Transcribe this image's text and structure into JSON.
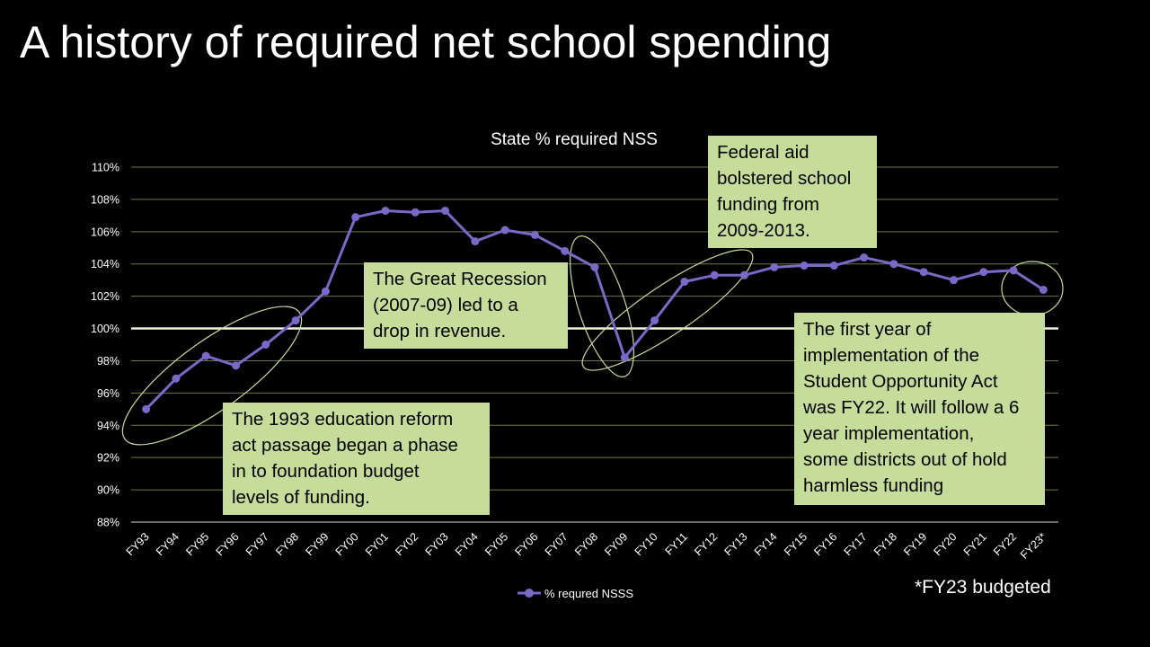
{
  "slide": {
    "title": "A history of required net school spending",
    "footnote": "*FY23 budgeted"
  },
  "callouts": {
    "reform": [
      "The 1993 education reform",
      "act passage began a phase",
      "in to foundation budget",
      "levels of funding."
    ],
    "recession": [
      "The Great Recession",
      "(2007-09) led to a",
      "drop in revenue."
    ],
    "federal": [
      "Federal aid",
      "bolstered school",
      "funding from",
      "2009-2013."
    ],
    "soa": [
      "The first year of",
      "implementation of the",
      "Student Opportunity Act",
      "was FY22. It will follow a 6",
      "year implementation,",
      "some districts out of hold",
      "harmless funding"
    ]
  },
  "colors": {
    "background": "#000000",
    "text": "#ffffff",
    "series": "#7b68c8",
    "callout_fill": "#c5dc9a",
    "ellipse": "#c5dc9a",
    "gridline": "#6b7a3a",
    "reference_line": "#f0f0d8"
  },
  "chart_data": {
    "type": "line",
    "title": "State % required NSS",
    "xlabel": "",
    "ylabel": "",
    "categories": [
      "FY93",
      "FY94",
      "FY95",
      "FY96",
      "FY97",
      "FY98",
      "FY99",
      "FY00",
      "FY01",
      "FY02",
      "FY03",
      "FY04",
      "FY05",
      "FY06",
      "FY07",
      "FY08",
      "FY09",
      "FY10",
      "FY11",
      "FY12",
      "FY13",
      "FY14",
      "FY15",
      "FY16",
      "FY17",
      "FY18",
      "FY19",
      "FY20",
      "FY21",
      "FY22",
      "FY23*"
    ],
    "series": [
      {
        "name": "% requred NSSS",
        "values": [
          95.0,
          96.9,
          98.3,
          97.7,
          99.0,
          100.5,
          102.3,
          106.9,
          107.3,
          107.2,
          107.3,
          105.4,
          106.1,
          105.8,
          104.8,
          103.8,
          98.2,
          100.5,
          102.9,
          103.3,
          103.3,
          103.8,
          103.9,
          103.9,
          104.4,
          104.0,
          103.5,
          103.0,
          103.5,
          103.6,
          102.4
        ]
      }
    ],
    "ylim": [
      88,
      110
    ],
    "yticks": [
      88,
      90,
      92,
      94,
      96,
      98,
      100,
      102,
      104,
      106,
      108,
      110
    ],
    "ytick_labels": [
      "88%",
      "90%",
      "92%",
      "94%",
      "96%",
      "98%",
      "100%",
      "102%",
      "104%",
      "106%",
      "108%",
      "110%"
    ],
    "reference_line": 100,
    "grid": true,
    "legend_position": "bottom"
  }
}
